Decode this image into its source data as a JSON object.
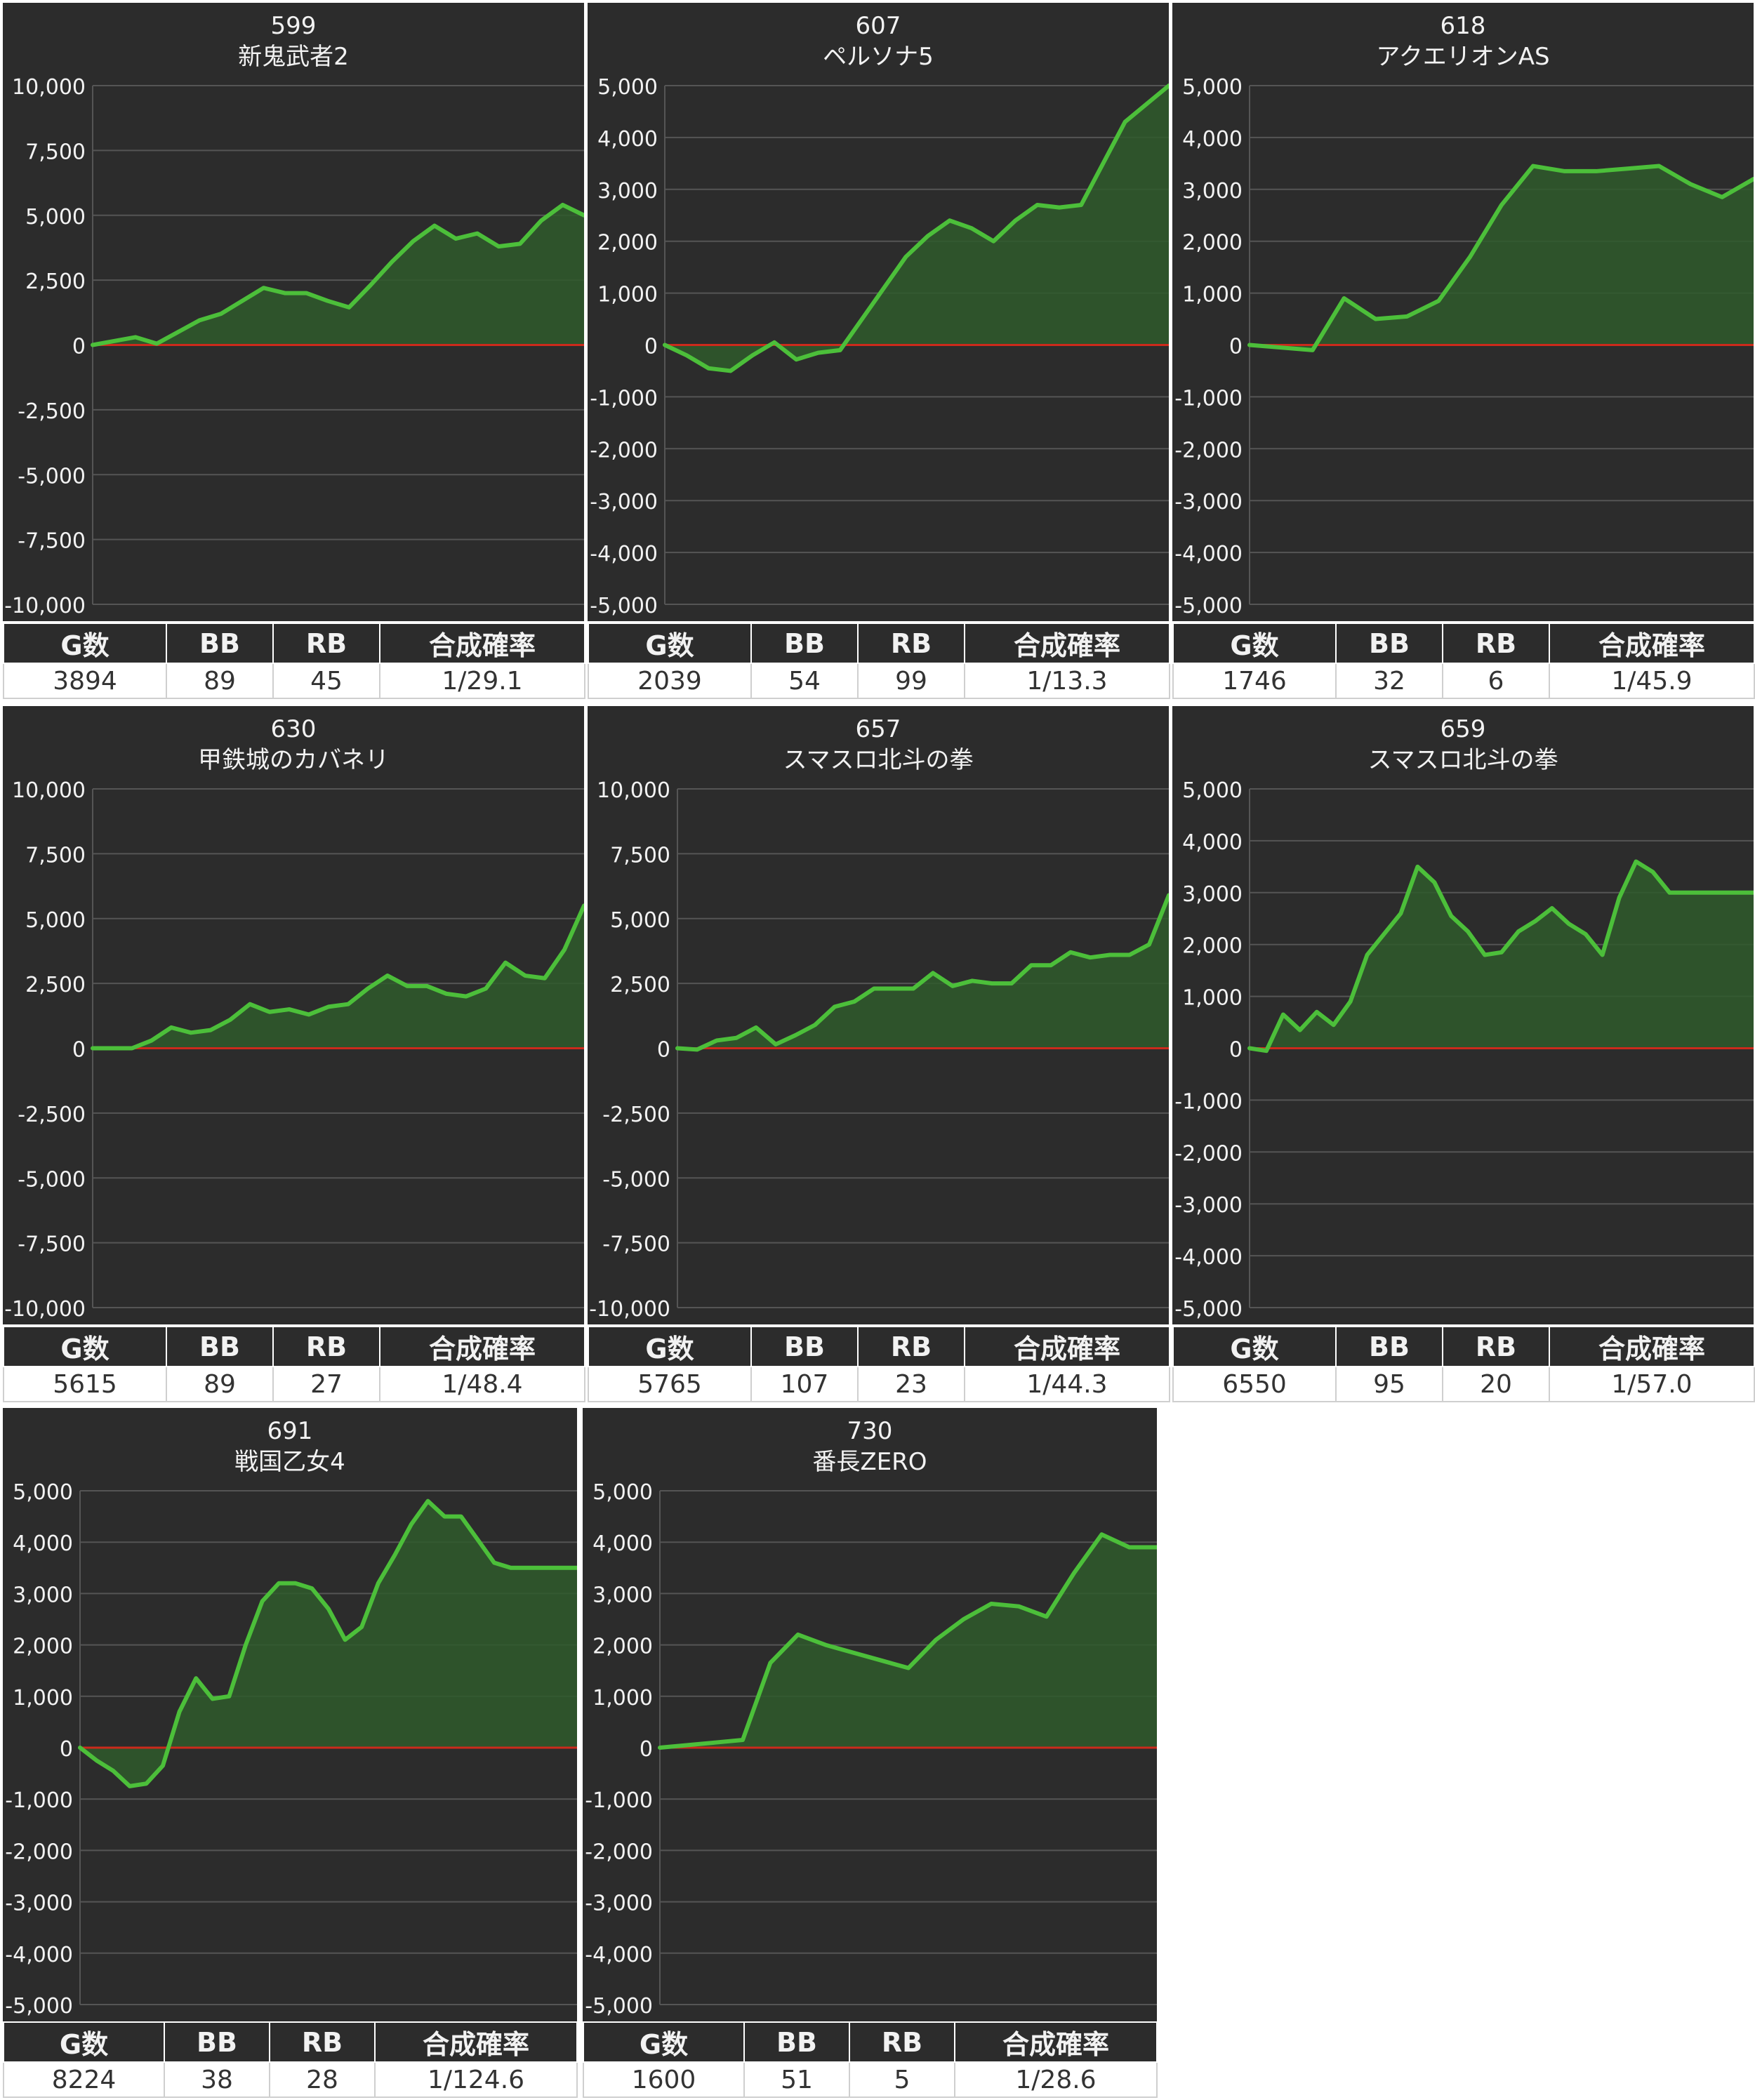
{
  "stat_headers": [
    "G数",
    "BB",
    "RB",
    "合成確率"
  ],
  "colors": {
    "panel_bg": "#2c2c2c",
    "line": "#4cbf3a",
    "fill": "#2f5a2b",
    "zero_line": "#cc2a1c",
    "grid": "#555555",
    "text": "#f2f2f2"
  },
  "chart_data": [
    {
      "type": "area",
      "machine_no": "599",
      "title": "新鬼武者2",
      "ylim": [
        -10000,
        10000
      ],
      "yticks": [
        10000,
        7500,
        5000,
        2500,
        0,
        -2500,
        -5000,
        -7500,
        -10000
      ],
      "tick_labels": [
        "10,000",
        "7,500",
        "5,000",
        "2,500",
        "0",
        "-2,500",
        "-5,000",
        "-7,500",
        "-10,000"
      ],
      "x": [
        0,
        1,
        2,
        3,
        4,
        5,
        6,
        7,
        8,
        9,
        10,
        11,
        12,
        13,
        14,
        15,
        16,
        17,
        18,
        19,
        20,
        21,
        22,
        23
      ],
      "values": [
        0,
        150,
        300,
        50,
        500,
        950,
        1200,
        1700,
        2200,
        2000,
        2000,
        1700,
        1450,
        2300,
        3200,
        4000,
        4600,
        4100,
        4300,
        3800,
        3900,
        4800,
        5400,
        5000
      ],
      "stats": [
        "3894",
        "89",
        "45",
        "1/29.1"
      ]
    },
    {
      "type": "area",
      "machine_no": "607",
      "title": "ペルソナ5",
      "ylim": [
        -5000,
        5000
      ],
      "yticks": [
        5000,
        4000,
        3000,
        2000,
        1000,
        0,
        -1000,
        -2000,
        -3000,
        -4000,
        -5000
      ],
      "tick_labels": [
        "5,000",
        "4,000",
        "3,000",
        "2,000",
        "1,000",
        "0",
        "-1,000",
        "-2,000",
        "-3,000",
        "-4,000",
        "-5,000"
      ],
      "x": [
        0,
        1,
        2,
        3,
        4,
        5,
        6,
        7,
        8,
        9,
        10,
        11,
        12,
        13,
        14,
        15,
        16,
        17,
        18,
        19,
        20,
        21,
        22,
        23
      ],
      "values": [
        0,
        -200,
        -450,
        -500,
        -200,
        50,
        -280,
        -150,
        -100,
        500,
        1100,
        1700,
        2100,
        2400,
        2250,
        2000,
        2400,
        2700,
        2650,
        2700,
        3500,
        4300,
        4650,
        5000
      ],
      "stats": [
        "2039",
        "54",
        "99",
        "1/13.3"
      ]
    },
    {
      "type": "area",
      "machine_no": "618",
      "title": "アクエリオンAS",
      "ylim": [
        -5000,
        5000
      ],
      "yticks": [
        5000,
        4000,
        3000,
        2000,
        1000,
        0,
        -1000,
        -2000,
        -3000,
        -4000,
        -5000
      ],
      "tick_labels": [
        "5,000",
        "4,000",
        "3,000",
        "2,000",
        "1,000",
        "0",
        "-1,000",
        "-2,000",
        "-3,000",
        "-4,000",
        "-5,000"
      ],
      "x": [
        0,
        1,
        2,
        3,
        4,
        5,
        6,
        7,
        8,
        9,
        10,
        11,
        12,
        13,
        14,
        15,
        16
      ],
      "values": [
        0,
        -50,
        -100,
        900,
        500,
        550,
        850,
        1700,
        2700,
        3450,
        3350,
        3350,
        3400,
        3450,
        3100,
        2850,
        3200
      ],
      "stats": [
        "1746",
        "32",
        "6",
        "1/45.9"
      ]
    },
    {
      "type": "area",
      "machine_no": "630",
      "title": "甲鉄城のカバネリ",
      "ylim": [
        -10000,
        10000
      ],
      "yticks": [
        10000,
        7500,
        5000,
        2500,
        0,
        -2500,
        -5000,
        -7500,
        -10000
      ],
      "tick_labels": [
        "10,000",
        "7,500",
        "5,000",
        "2,500",
        "0",
        "-2,500",
        "-5,000",
        "-7,500",
        "-10,000"
      ],
      "x": [
        0,
        1,
        2,
        3,
        4,
        5,
        6,
        7,
        8,
        9,
        10,
        11,
        12,
        13,
        14,
        15,
        16,
        17,
        18,
        19,
        20,
        21,
        22,
        23,
        24,
        25
      ],
      "values": [
        0,
        0,
        0,
        300,
        800,
        600,
        700,
        1100,
        1700,
        1400,
        1500,
        1300,
        1600,
        1700,
        2300,
        2800,
        2400,
        2400,
        2100,
        2000,
        2300,
        3300,
        2800,
        2700,
        3800,
        5500
      ],
      "stats": [
        "5615",
        "89",
        "27",
        "1/48.4"
      ]
    },
    {
      "type": "area",
      "machine_no": "657",
      "title": "スマスロ北斗の拳",
      "ylim": [
        -10000,
        10000
      ],
      "yticks": [
        10000,
        7500,
        5000,
        2500,
        0,
        -2500,
        -5000,
        -7500,
        -10000
      ],
      "tick_labels": [
        "10,000",
        "7,500",
        "5,000",
        "2,500",
        "0",
        "-2,500",
        "-5,000",
        "-7,500",
        "-10,000"
      ],
      "x": [
        0,
        1,
        2,
        3,
        4,
        5,
        6,
        7,
        8,
        9,
        10,
        11,
        12,
        13,
        14,
        15,
        16,
        17,
        18,
        19,
        20,
        21,
        22,
        23,
        24,
        25
      ],
      "values": [
        0,
        -50,
        300,
        400,
        800,
        150,
        500,
        900,
        1600,
        1800,
        2300,
        2300,
        2300,
        2900,
        2400,
        2600,
        2500,
        2500,
        3200,
        3200,
        3700,
        3500,
        3600,
        3600,
        4000,
        5900
      ],
      "stats": [
        "5765",
        "107",
        "23",
        "1/44.3"
      ]
    },
    {
      "type": "area",
      "machine_no": "659",
      "title": "スマスロ北斗の拳",
      "ylim": [
        -5000,
        5000
      ],
      "yticks": [
        5000,
        4000,
        3000,
        2000,
        1000,
        0,
        -1000,
        -2000,
        -3000,
        -4000,
        -5000
      ],
      "tick_labels": [
        "5,000",
        "4,000",
        "3,000",
        "2,000",
        "1,000",
        "0",
        "-1,000",
        "-2,000",
        "-3,000",
        "-4,000",
        "-5,000"
      ],
      "x": [
        0,
        1,
        2,
        3,
        4,
        5,
        6,
        7,
        8,
        9,
        10,
        11,
        12,
        13,
        14,
        15,
        16,
        17,
        18,
        19,
        20,
        21,
        22,
        23,
        24,
        25,
        26,
        27,
        28,
        29,
        30
      ],
      "values": [
        0,
        -50,
        650,
        350,
        700,
        450,
        900,
        1800,
        2200,
        2600,
        3500,
        3200,
        2550,
        2250,
        1800,
        1850,
        2250,
        2450,
        2700,
        2400,
        2200,
        1800,
        2900,
        3600,
        3400,
        3000,
        3000,
        3000,
        3000,
        3000,
        3000
      ],
      "stats": [
        "6550",
        "95",
        "20",
        "1/57.0"
      ]
    },
    {
      "type": "area",
      "machine_no": "691",
      "title": "戦国乙女4",
      "ylim": [
        -5000,
        5000
      ],
      "yticks": [
        5000,
        4000,
        3000,
        2000,
        1000,
        0,
        -1000,
        -2000,
        -3000,
        -4000,
        -5000
      ],
      "tick_labels": [
        "5,000",
        "4,000",
        "3,000",
        "2,000",
        "1,000",
        "0",
        "-1,000",
        "-2,000",
        "-3,000",
        "-4,000",
        "-5,000"
      ],
      "x": [
        0,
        1,
        2,
        3,
        4,
        5,
        6,
        7,
        8,
        9,
        10,
        11,
        12,
        13,
        14,
        15,
        16,
        17,
        18,
        19,
        20,
        21,
        22,
        23,
        24,
        25,
        26,
        27,
        28,
        29,
        30
      ],
      "values": [
        0,
        -250,
        -450,
        -750,
        -700,
        -350,
        700,
        1350,
        950,
        1000,
        2000,
        2850,
        3200,
        3200,
        3100,
        2700,
        2100,
        2350,
        3200,
        3750,
        4350,
        4800,
        4500,
        4500,
        4050,
        3600,
        3500,
        3500,
        3500,
        3500,
        3500
      ],
      "stats": [
        "8224",
        "38",
        "28",
        "1/124.6"
      ]
    },
    {
      "type": "area",
      "machine_no": "730",
      "title": "番長ZERO",
      "ylim": [
        -5000,
        5000
      ],
      "yticks": [
        5000,
        4000,
        3000,
        2000,
        1000,
        0,
        -1000,
        -2000,
        -3000,
        -4000,
        -5000
      ],
      "tick_labels": [
        "5,000",
        "4,000",
        "3,000",
        "2,000",
        "1,000",
        "0",
        "-1,000",
        "-2,000",
        "-3,000",
        "-4,000",
        "-5,000"
      ],
      "x": [
        0,
        1,
        2,
        3,
        4,
        5,
        6,
        7,
        8,
        9,
        10,
        11,
        12,
        13,
        14,
        15,
        16,
        17,
        18
      ],
      "values": [
        0,
        50,
        100,
        150,
        1650,
        2200,
        2000,
        1850,
        1700,
        1550,
        2100,
        2500,
        2800,
        2750,
        2550,
        3400,
        4150,
        3900,
        3900
      ],
      "stats": [
        "1600",
        "51",
        "5",
        "1/28.6"
      ]
    }
  ]
}
